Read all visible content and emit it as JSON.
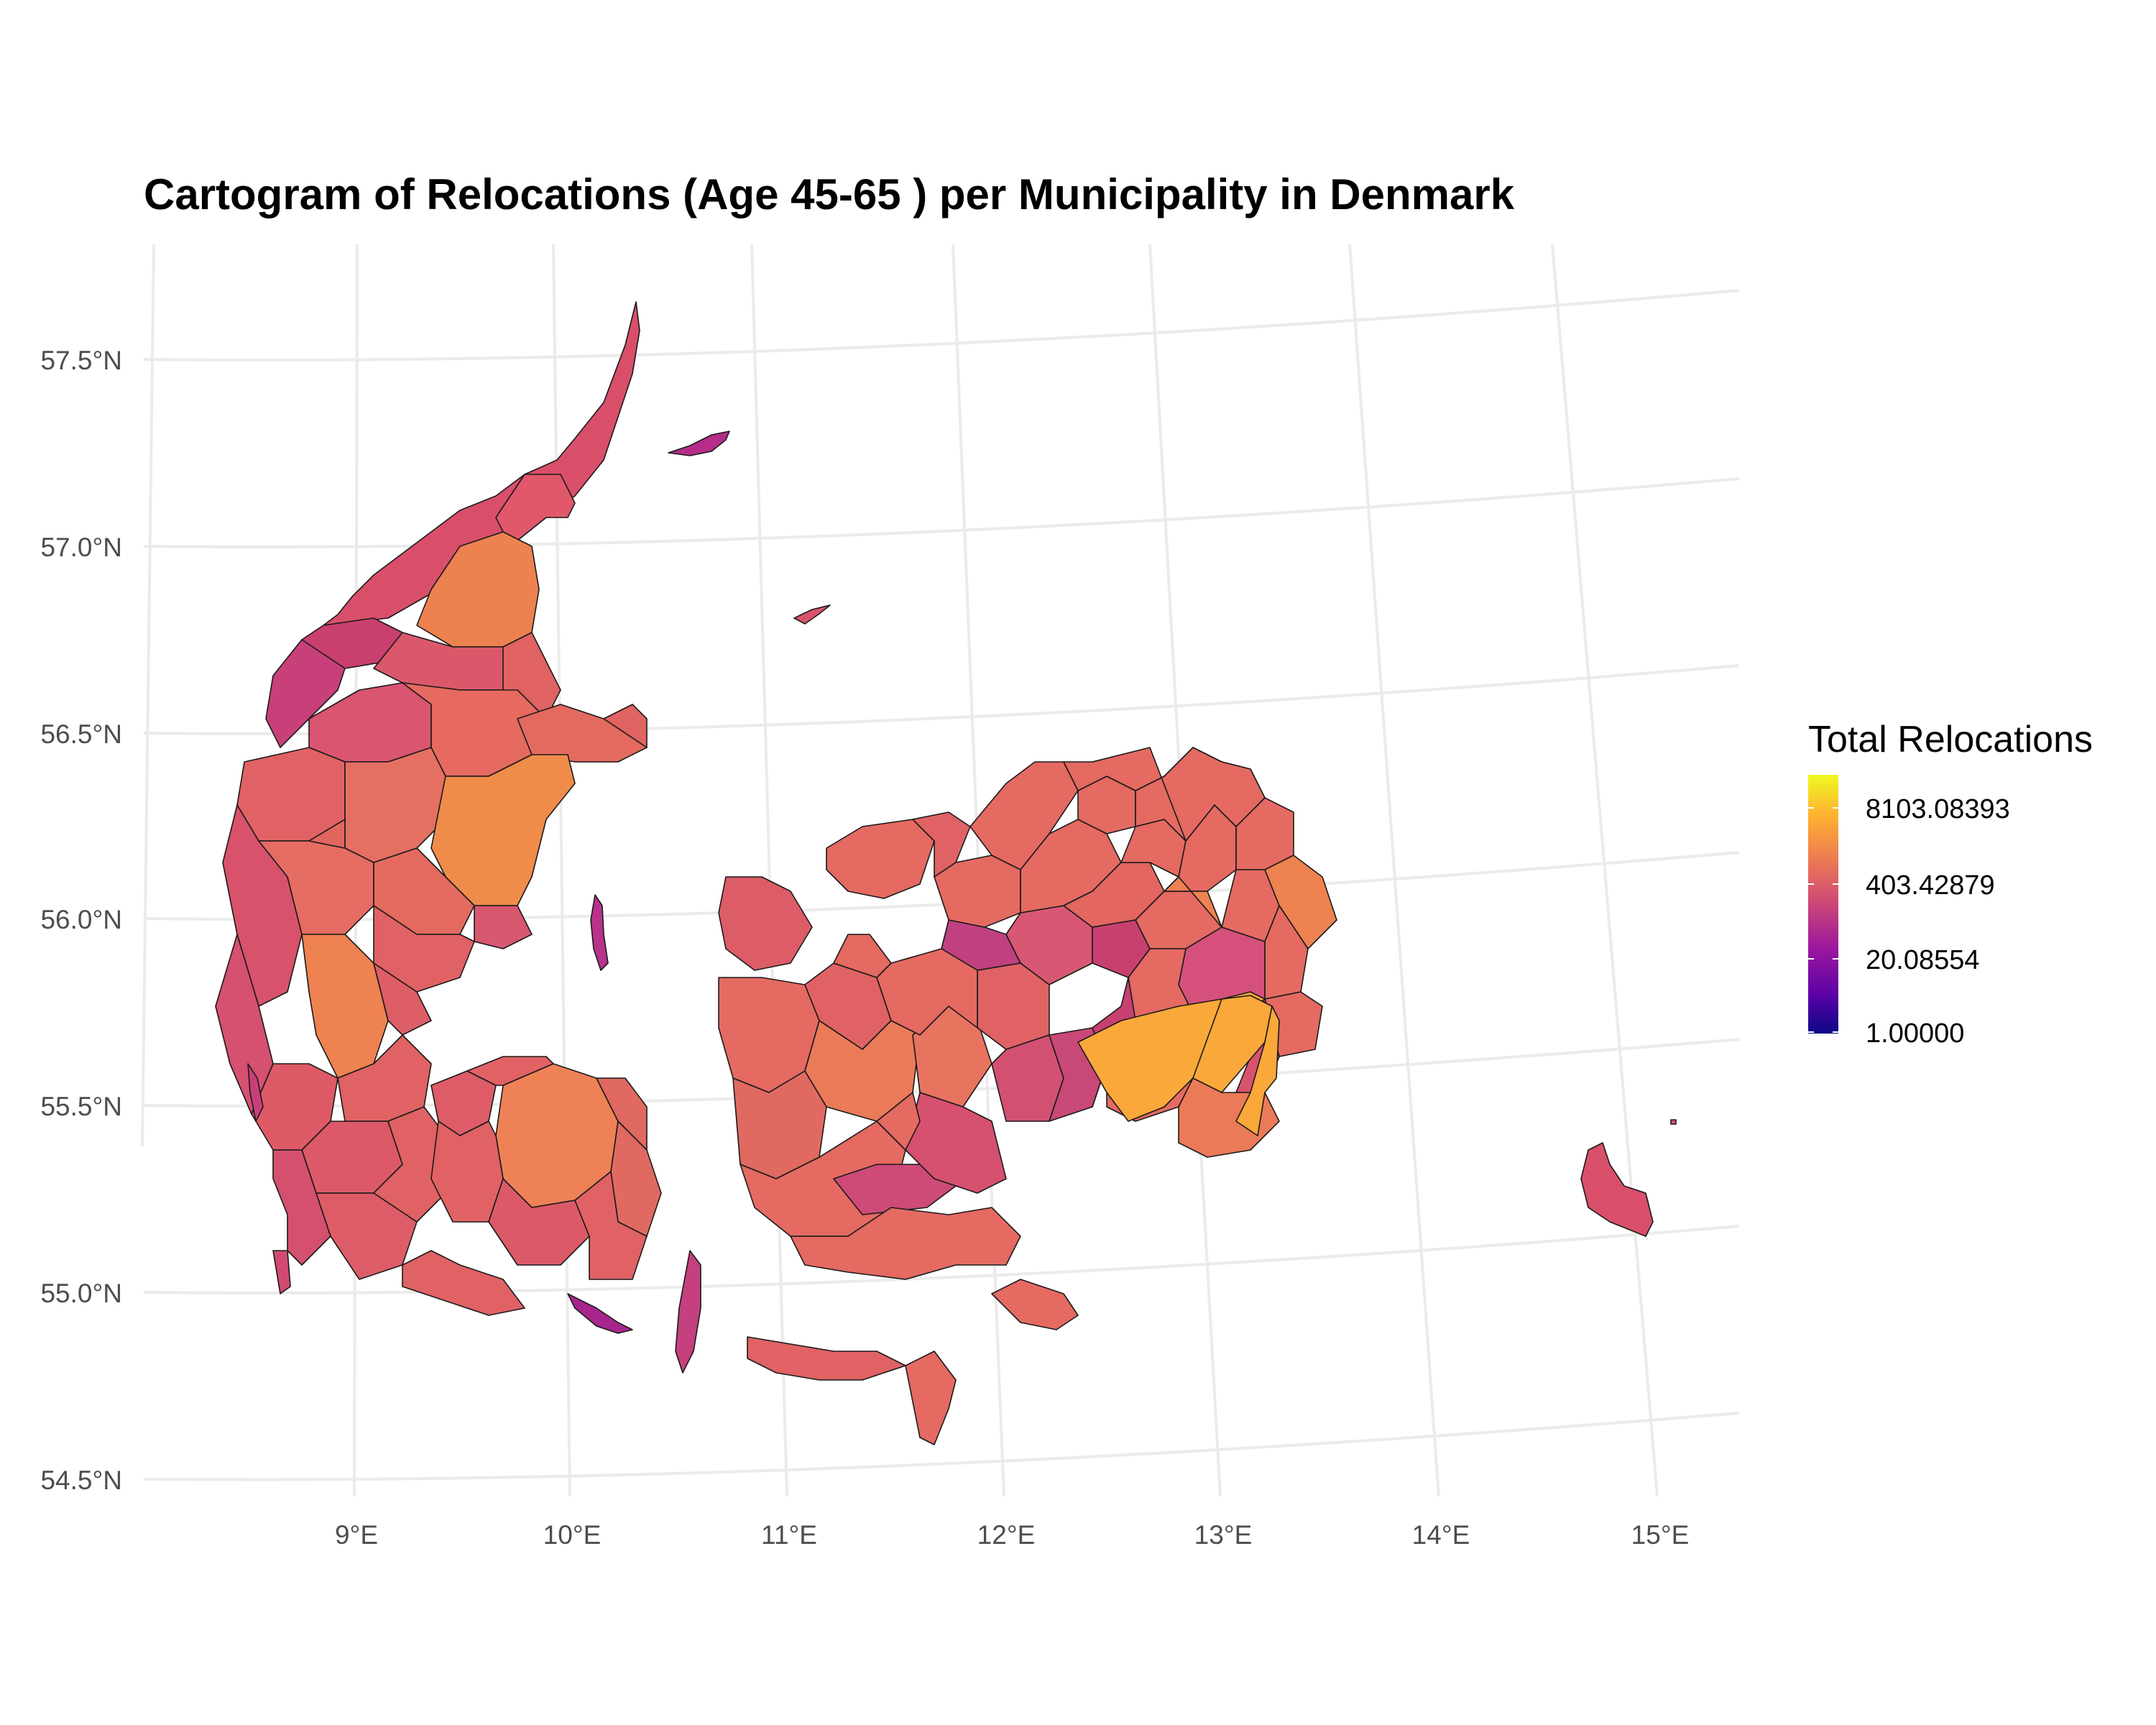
{
  "title": "Cartogram of Relocations (Age 45-65 ) per Municipality in Denmark",
  "map": {
    "type": "cartogram",
    "lat_ticks": [
      "57.5°N",
      "57.0°N",
      "56.5°N",
      "56.0°N",
      "55.5°N",
      "55.0°N",
      "54.5°N"
    ],
    "lon_ticks": [
      "9°E",
      "10°E",
      "11°E",
      "12°E",
      "13°E",
      "14°E",
      "15°E"
    ],
    "extent": {
      "lon": [
        8.0,
        15.3
      ],
      "lat": [
        54.4,
        57.8
      ]
    },
    "colors": {
      "low": "#0d0887",
      "mid_low": "#b12a90",
      "mid": "#e16462",
      "high": "#fca636",
      "top": "#f0f921",
      "grid": "#ebebeb",
      "border": "#1a1a1a"
    }
  },
  "legend": {
    "title": "Total Relocations",
    "labels": [
      "8103.08393",
      "403.42879",
      "20.08554",
      "1.00000"
    ],
    "scale": "log",
    "range": [
      1.0,
      8103.08393
    ]
  }
}
